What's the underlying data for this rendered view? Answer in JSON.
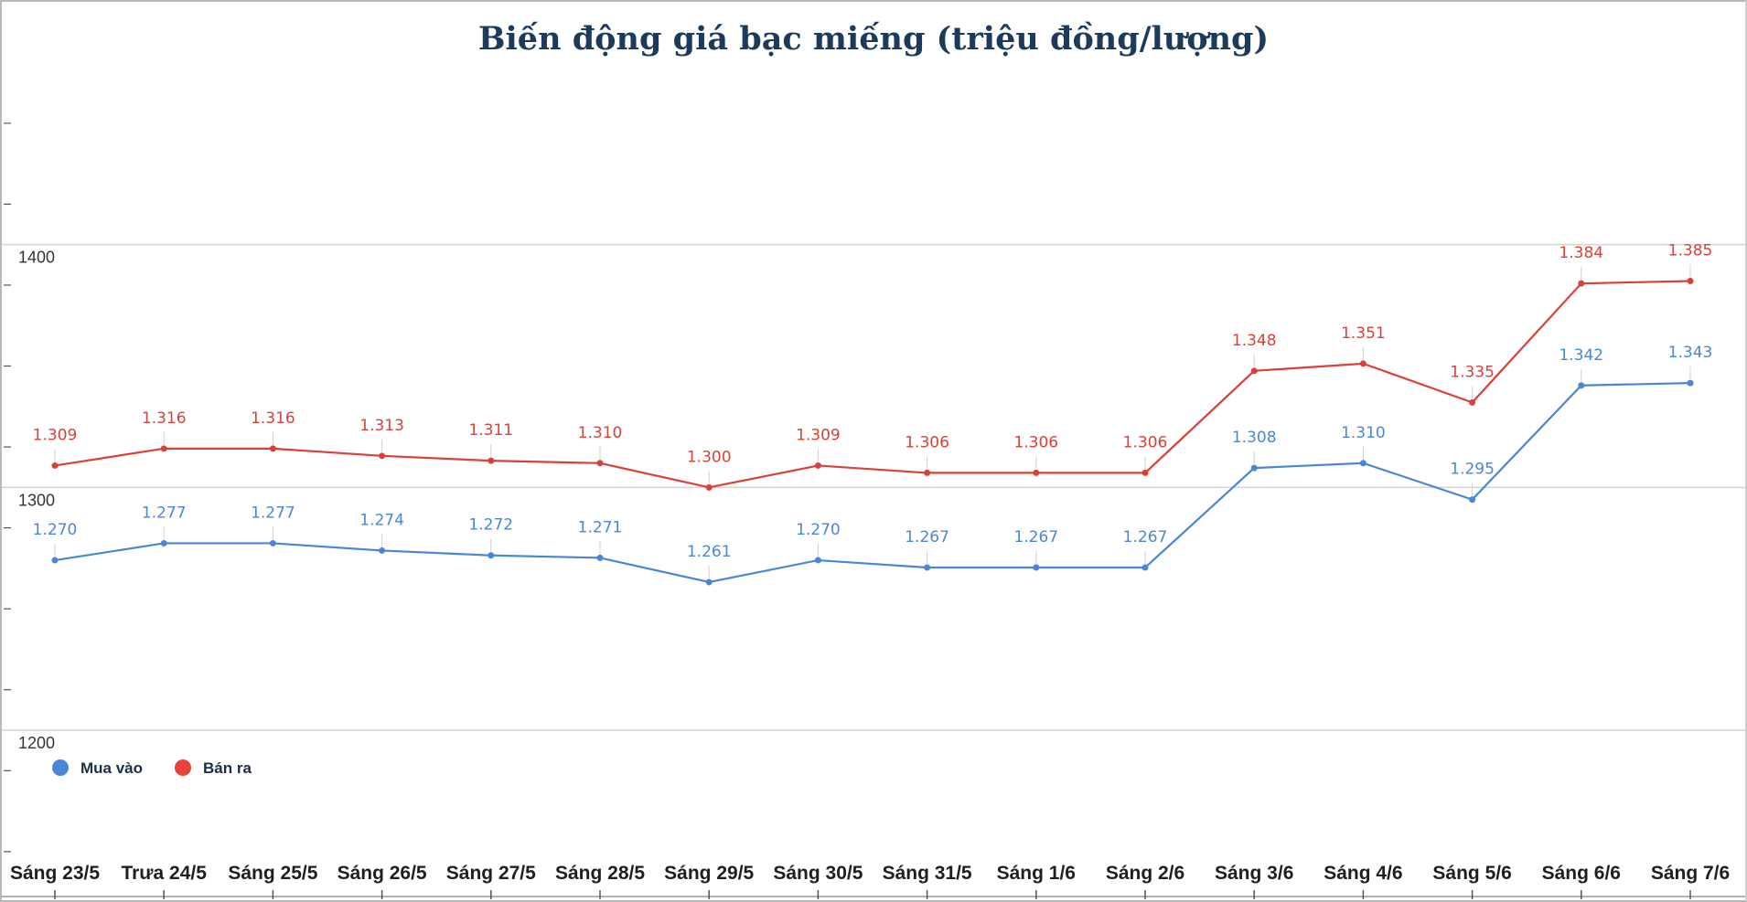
{
  "chart_data": {
    "type": "line",
    "title": "Biến động giá bạc miếng (triệu đồng/lượng)",
    "xlabel": "",
    "ylabel": "",
    "ylim": [
      1130,
      1500
    ],
    "yticks": [
      1200,
      1300,
      1400
    ],
    "ytick_labels": [
      "1200",
      "1300",
      "1400"
    ],
    "grid": true,
    "legend_position": "bottom-left",
    "categories": [
      "Sáng 23/5",
      "Trưa 24/5",
      "Sáng 25/5",
      "Sáng 26/5",
      "Sáng 27/5",
      "Sáng 28/5",
      "Sáng 29/5",
      "Sáng 30/5",
      "Sáng 31/5",
      "Sáng 1/6",
      "Sáng 2/6",
      "Sáng 3/6",
      "Sáng 4/6",
      "Sáng 5/6",
      "Sáng 6/6",
      "Sáng 7/6"
    ],
    "series": [
      {
        "name": "Mua vào",
        "color": "#4a86d6",
        "values": [
          1270,
          1277,
          1277,
          1274,
          1272,
          1271,
          1261,
          1270,
          1267,
          1267,
          1267,
          1308,
          1310,
          1295,
          1342,
          1343
        ],
        "labels": [
          "1.270",
          "1.277",
          "1.277",
          "1.274",
          "1.272",
          "1.271",
          "1.261",
          "1.270",
          "1.267",
          "1.267",
          "1.267",
          "1.308",
          "1.310",
          "1.295",
          "1.342",
          "1.343"
        ]
      },
      {
        "name": "Bán ra",
        "color": "#d8413a",
        "values": [
          1309,
          1316,
          1316,
          1313,
          1311,
          1310,
          1300,
          1309,
          1306,
          1306,
          1306,
          1348,
          1351,
          1335,
          1384,
          1385
        ],
        "labels": [
          "1.309",
          "1.316",
          "1.316",
          "1.313",
          "1.311",
          "1.310",
          "1.300",
          "1.309",
          "1.306",
          "1.306",
          "1.306",
          "1.348",
          "1.351",
          "1.335",
          "1.384",
          "1.385"
        ]
      }
    ]
  },
  "colors": {
    "title": "#1b3a5c",
    "grid": "#d3d3d3",
    "axis": "#555555",
    "legend_dot_buy": "#4a86d6",
    "legend_dot_sell": "#e8413a"
  }
}
